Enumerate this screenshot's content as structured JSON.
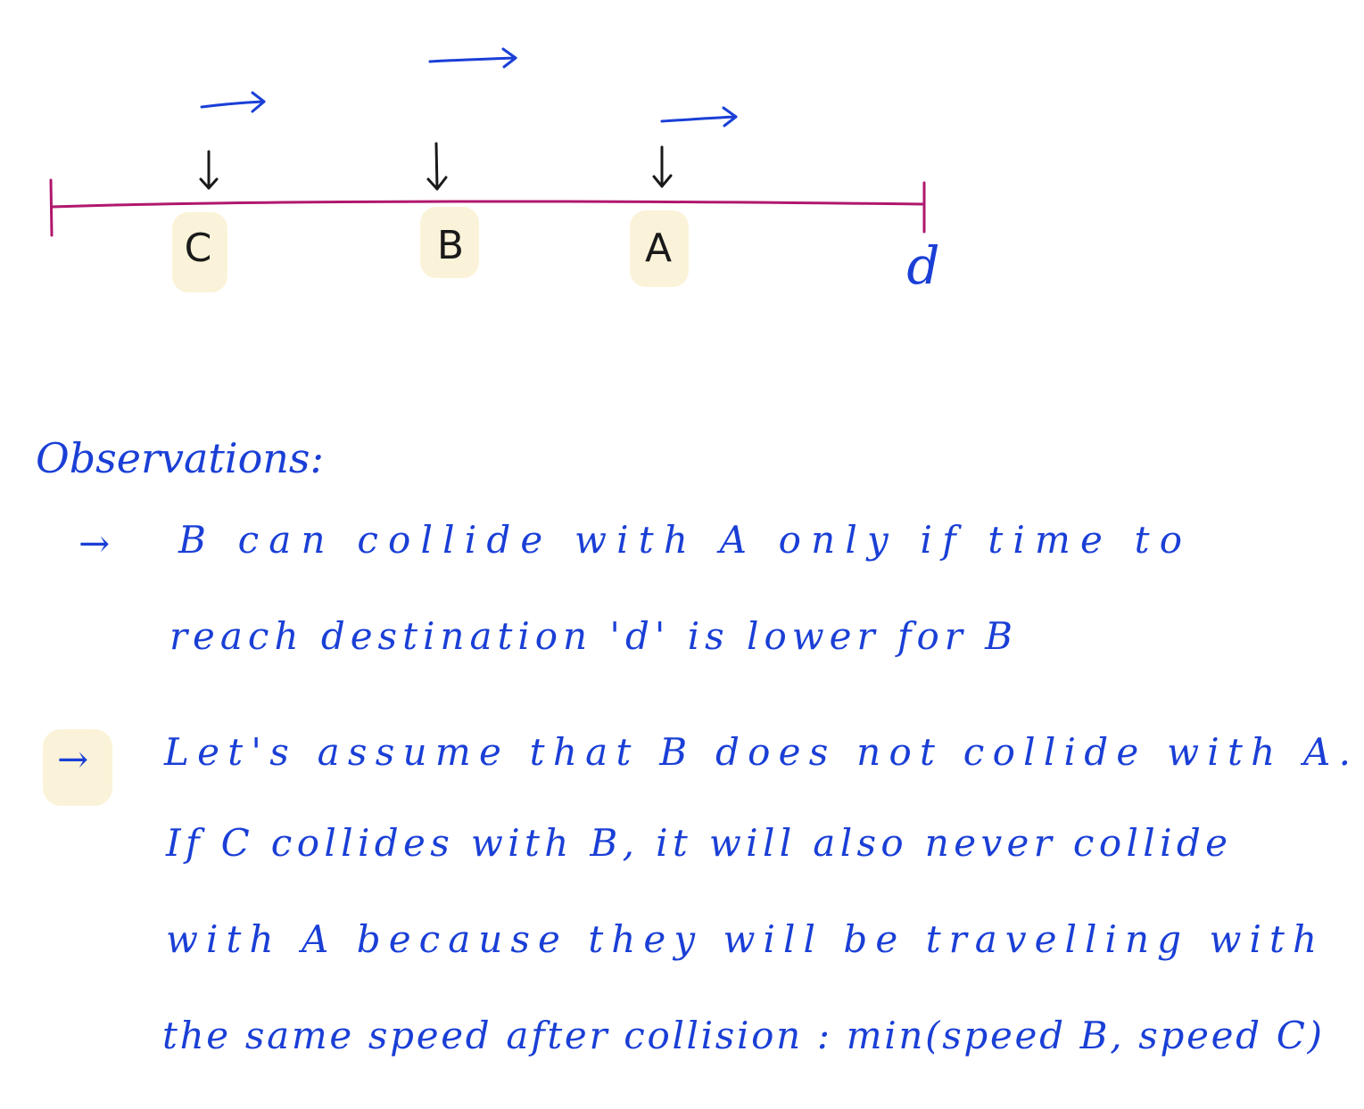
{
  "diagram": {
    "accent_color": "#1a3fd6",
    "line_color": "#b0176e",
    "highlight_color": "#fbf3d9",
    "label_color": "#1a1a1a",
    "cars": [
      {
        "label": "C",
        "arrow": "velocity-arrow-short"
      },
      {
        "label": "B",
        "arrow": "velocity-arrow-long"
      },
      {
        "label": "A",
        "arrow": "velocity-arrow-medium"
      }
    ],
    "destination_label": "d"
  },
  "notes": {
    "heading": "Observations:",
    "bullet_glyph": "→",
    "bullet1_lines": [
      "B can collide with A only if time to",
      "reach destination 'd' is lower for B"
    ],
    "bullet2_lines": [
      "Let's assume that B does not collide with A.",
      "If C collides with B, it will also never collide",
      "with A because they will be travelling with",
      "the same speed after collision : min(speed B, speed C)"
    ]
  }
}
